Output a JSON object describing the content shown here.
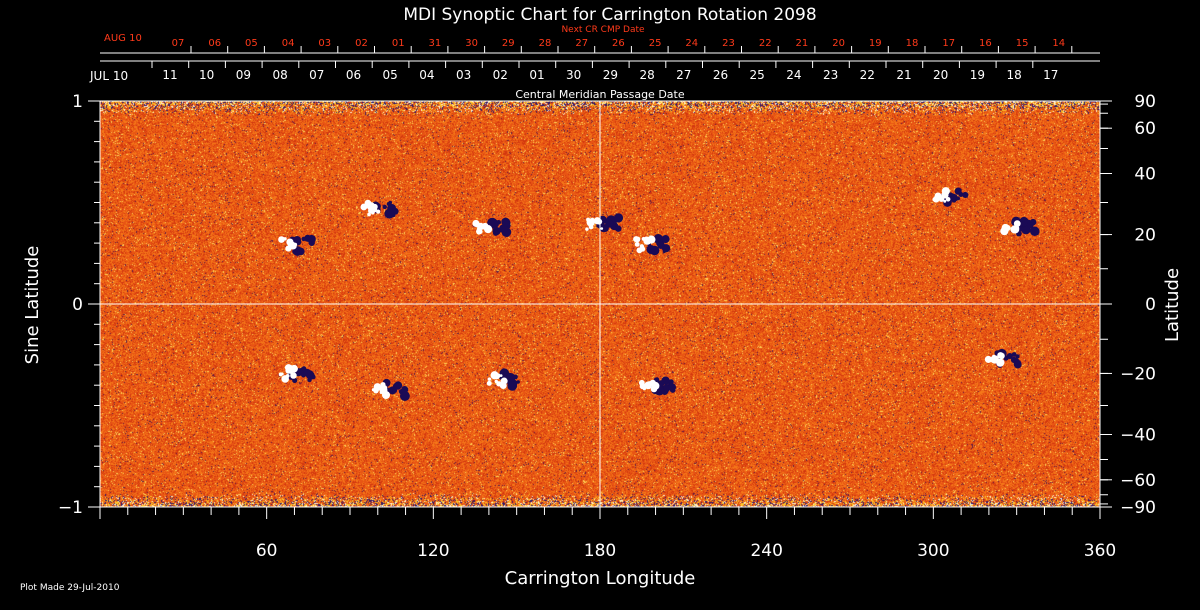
{
  "chart_data": {
    "type": "heatmap",
    "title": "MDI Synoptic Chart for Carrington Rotation 2098",
    "xlabel": "Carrington Longitude",
    "ylabel_left": "Sine Latitude",
    "ylabel_right": "Latitude",
    "xlim": [
      0,
      360
    ],
    "ylim": [
      -1,
      1
    ],
    "x_ticks": [
      60,
      120,
      180,
      240,
      300,
      360
    ],
    "y_left_ticks": [
      {
        "value": 1,
        "label": "1"
      },
      {
        "value": 0,
        "label": "0"
      },
      {
        "value": -1,
        "label": "−1"
      }
    ],
    "y_right_ticks": [
      {
        "deg": 90,
        "label": "90"
      },
      {
        "deg": 60,
        "label": "60"
      },
      {
        "deg": 40,
        "label": "40"
      },
      {
        "deg": 20,
        "label": "20"
      },
      {
        "deg": 0,
        "label": "0"
      },
      {
        "deg": -20,
        "label": "−20"
      },
      {
        "deg": -40,
        "label": "−40"
      },
      {
        "deg": -60,
        "label": "−60"
      },
      {
        "deg": -90,
        "label": "−90"
      }
    ],
    "cmp_axis": {
      "label": "Central Meridian Passage Date",
      "start_label": "JUL 10",
      "dates": [
        "11",
        "10",
        "09",
        "08",
        "07",
        "06",
        "05",
        "04",
        "03",
        "02",
        "01",
        "30",
        "29",
        "28",
        "27",
        "26",
        "25",
        "24",
        "23",
        "22",
        "21",
        "20",
        "19",
        "18",
        "17"
      ]
    },
    "next_cr_axis": {
      "label": "Next CR CMP Date",
      "start_label": "AUG 10",
      "dates": [
        "07",
        "06",
        "05",
        "04",
        "03",
        "02",
        "01",
        "31",
        "30",
        "29",
        "28",
        "27",
        "26",
        "25",
        "24",
        "23",
        "22",
        "21",
        "20",
        "19",
        "18",
        "17",
        "16",
        "15",
        "14"
      ]
    },
    "colors": {
      "background_field": "#e8531a",
      "positive_polarity": "#ffffff",
      "negative_polarity": "#1a0a55",
      "axes": "#ffffff",
      "next_cr_text": "#ff3a1a"
    },
    "active_regions": [
      {
        "lon": 70,
        "lat": 17,
        "pol": "mixed"
      },
      {
        "lon": 100,
        "lat": 28,
        "pol": "mixed"
      },
      {
        "lon": 140,
        "lat": 22,
        "pol": "mixed"
      },
      {
        "lon": 180,
        "lat": 23,
        "pol": "mixed"
      },
      {
        "lon": 198,
        "lat": 17,
        "pol": "mixed"
      },
      {
        "lon": 305,
        "lat": 32,
        "pol": "mixed"
      },
      {
        "lon": 330,
        "lat": 22,
        "pol": "mixed"
      },
      {
        "lon": 70,
        "lat": -20,
        "pol": "mixed"
      },
      {
        "lon": 103,
        "lat": -25,
        "pol": "mixed"
      },
      {
        "lon": 145,
        "lat": -22,
        "pol": "mixed"
      },
      {
        "lon": 200,
        "lat": -24,
        "pol": "mixed"
      },
      {
        "lon": 324,
        "lat": -16,
        "pol": "mixed"
      }
    ]
  },
  "footer": {
    "plot_made": "Plot Made 29-Jul-2010"
  }
}
